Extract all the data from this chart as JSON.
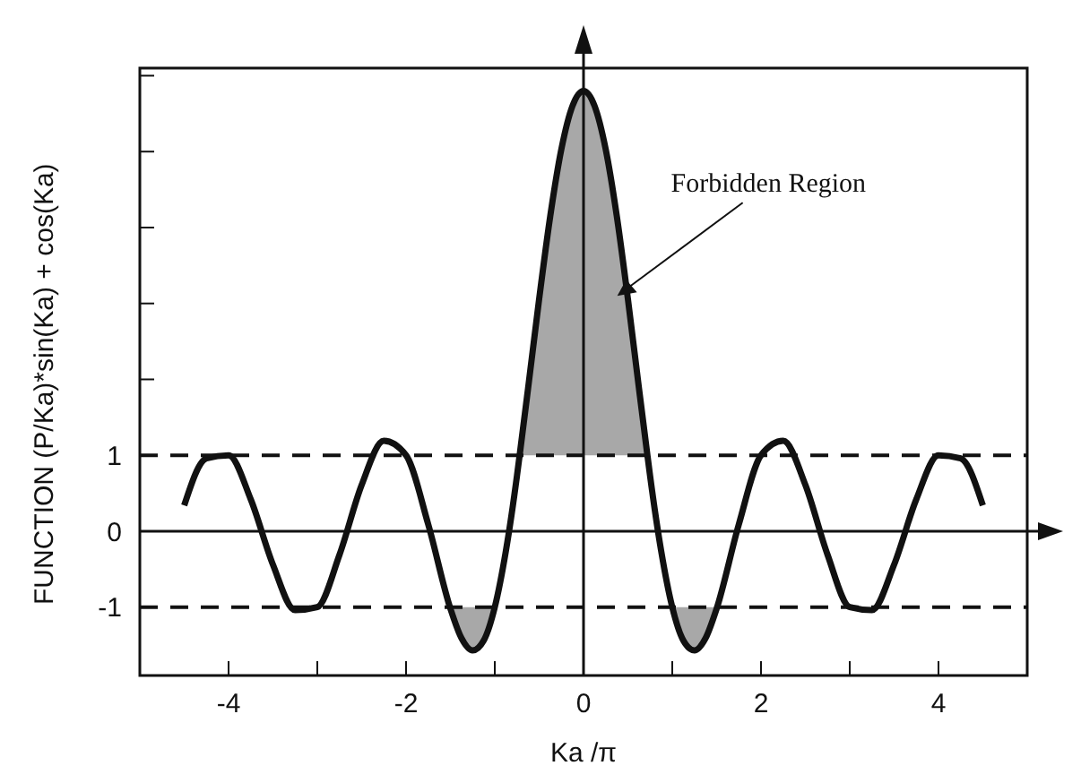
{
  "chart_data": {
    "type": "line",
    "xlabel": "Ka /π",
    "ylabel": "FUNCTION  (P/Ka)*sin(Ka) + cos(Ka)",
    "x": [
      -4.5,
      -4.25,
      -4,
      -3.75,
      -3.5,
      -3.25,
      -3,
      -2.75,
      -2.5,
      -2.25,
      -2,
      -1.75,
      -1.5,
      -1.375,
      -1.25,
      -1.125,
      -1,
      -0.875,
      -0.75,
      -0.72,
      -0.625,
      -0.5,
      -0.375,
      -0.25,
      -0.125,
      0,
      0.125,
      0.25,
      0.375,
      0.5,
      0.625,
      0.72,
      0.75,
      0.875,
      1,
      1.125,
      1.25,
      1.375,
      1.5,
      1.75,
      2,
      2.25,
      2.5,
      2.75,
      3,
      3.25,
      3.5,
      3.75,
      4,
      4.25,
      4.5
    ],
    "series": [
      {
        "color": "#111111",
        "values": [
          0.34,
          0.96,
          1,
          0.42,
          -0.44,
          -1.04,
          -1,
          -0.31,
          0.61,
          1.19,
          1,
          0.09,
          -1.02,
          -1.41,
          -1.57,
          -1.44,
          -1,
          -0.26,
          0.73,
          1.0,
          1.88,
          3.06,
          4.15,
          5.03,
          5.6,
          5.8,
          5.6,
          5.03,
          4.15,
          3.06,
          1.88,
          1.0,
          0.73,
          -0.26,
          -1,
          -1.44,
          -1.57,
          -1.41,
          -1.02,
          0.09,
          1,
          1.19,
          0.61,
          -0.31,
          -1,
          -1.04,
          -0.44,
          0.42,
          1,
          0.96,
          0.34
        ],
        "lower": [
          null,
          null,
          null,
          null,
          null,
          null,
          null,
          null,
          null,
          null,
          null,
          null,
          -1.02,
          -1.41,
          -1.57,
          -1.44,
          -1,
          null,
          null,
          1,
          1,
          1,
          1,
          1,
          1,
          1,
          1,
          1,
          1,
          1,
          1,
          1,
          null,
          null,
          -1,
          -1.44,
          -1.57,
          -1.41,
          -1.02,
          null,
          null,
          null,
          null,
          null,
          null,
          null,
          null,
          null,
          null,
          null,
          null
        ],
        "upper": [
          null,
          null,
          null,
          null,
          null,
          null,
          null,
          null,
          null,
          null,
          null,
          null,
          -1,
          -1,
          -1,
          -1,
          -1,
          null,
          null,
          1.0,
          1.88,
          3.06,
          4.15,
          5.03,
          5.6,
          5.8,
          5.6,
          5.03,
          4.15,
          3.06,
          1.88,
          1.0,
          null,
          null,
          -1,
          -1,
          -1,
          -1,
          -1,
          null,
          null,
          null,
          null,
          null,
          null,
          null,
          null,
          null,
          null,
          null,
          null
        ]
      }
    ],
    "xlim": [
      -5,
      5
    ],
    "xticks": [
      -4,
      {
        "value": -3,
        "label": null
      },
      -2,
      {
        "value": -1,
        "label": null
      },
      0,
      {
        "value": 1,
        "label": null
      },
      2,
      {
        "value": 3,
        "label": null
      },
      4
    ],
    "ylim": [
      -1.9,
      6.1
    ],
    "yticks": [
      -1,
      0,
      1,
      {
        "value": 2,
        "label": null
      },
      {
        "value": 3,
        "label": null
      },
      {
        "value": 4,
        "label": null
      },
      {
        "value": 5,
        "label": null
      },
      {
        "value": 6,
        "label": null
      }
    ],
    "ref_lines": [
      {
        "axis": "y",
        "value": 1,
        "line_style": "dashed"
      },
      {
        "axis": "y",
        "value": -1,
        "line_style": "dashed"
      },
      {
        "axis": "y",
        "value": 0,
        "line_style": "solid"
      },
      {
        "axis": "x",
        "value": 0,
        "line_style": "solid"
      }
    ],
    "annotations": [
      {
        "text": "Forbidden Region",
        "x": 0.38,
        "y": 3.1
      }
    ],
    "legend": false
  }
}
